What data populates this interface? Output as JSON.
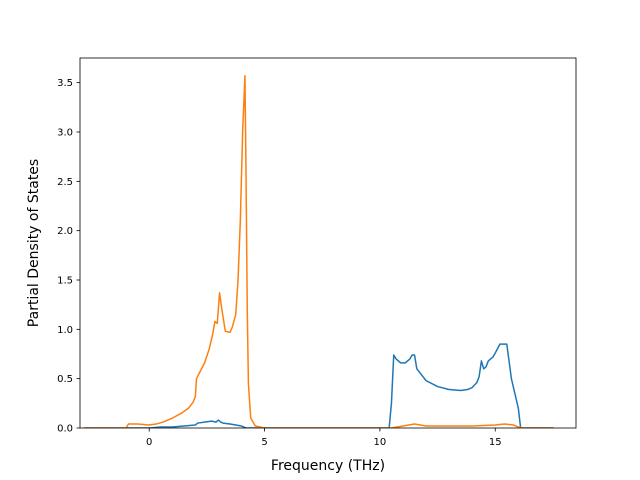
{
  "chart_data": {
    "type": "line",
    "title": "",
    "xlabel": "Frequency (THz)",
    "ylabel": "Partial Density of States",
    "xlim": [
      -3.0,
      18.5
    ],
    "ylim": [
      0.0,
      3.75
    ],
    "xticks": [
      0,
      5,
      10,
      15
    ],
    "xtick_labels": [
      "0",
      "5",
      "10",
      "15"
    ],
    "yticks": [
      0.0,
      0.5,
      1.0,
      1.5,
      2.0,
      2.5,
      3.0,
      3.5
    ],
    "ytick_labels": [
      "0.0",
      "0.5",
      "1.0",
      "1.5",
      "2.0",
      "2.5",
      "3.0",
      "3.5"
    ],
    "grid": false,
    "legend": "none",
    "series": [
      {
        "color": "#1f77b4",
        "x": [
          -2.8,
          -1.0,
          0.0,
          0.5,
          1.0,
          1.5,
          2.0,
          2.1,
          2.4,
          2.7,
          2.9,
          3.0,
          3.1,
          3.2,
          3.5,
          4.0,
          4.2,
          4.5,
          5.0,
          8.0,
          10.4,
          10.5,
          10.6,
          10.7,
          10.9,
          11.1,
          11.3,
          11.4,
          11.5,
          11.6,
          12.0,
          12.5,
          13.0,
          13.5,
          13.8,
          14.0,
          14.2,
          14.3,
          14.4,
          14.5,
          14.6,
          14.7,
          14.9,
          15.0,
          15.2,
          15.5,
          15.7,
          16.0,
          16.1,
          16.5,
          17.5
        ],
        "y": [
          0.0,
          0.0,
          0.0,
          0.01,
          0.01,
          0.02,
          0.03,
          0.05,
          0.06,
          0.07,
          0.06,
          0.08,
          0.06,
          0.05,
          0.04,
          0.02,
          0.0,
          0.0,
          0.0,
          0.0,
          0.0,
          0.25,
          0.74,
          0.7,
          0.66,
          0.66,
          0.7,
          0.74,
          0.74,
          0.6,
          0.48,
          0.42,
          0.39,
          0.38,
          0.39,
          0.41,
          0.46,
          0.52,
          0.68,
          0.6,
          0.62,
          0.68,
          0.72,
          0.76,
          0.85,
          0.85,
          0.5,
          0.2,
          0.0,
          0.0,
          0.0
        ]
      },
      {
        "color": "#ff7f0e",
        "x": [
          -2.8,
          -1.0,
          -0.9,
          -0.5,
          0.0,
          0.3,
          0.6,
          1.0,
          1.4,
          1.7,
          1.9,
          2.0,
          2.05,
          2.2,
          2.4,
          2.6,
          2.75,
          2.85,
          2.95,
          3.05,
          3.15,
          3.3,
          3.5,
          3.6,
          3.75,
          3.85,
          3.95,
          4.05,
          4.15,
          4.2,
          4.25,
          4.3,
          4.4,
          4.6,
          5.0,
          8.0,
          10.5,
          11.0,
          11.5,
          12.0,
          13.0,
          14.0,
          15.0,
          15.4,
          15.8,
          16.0,
          16.2,
          17.5
        ],
        "y": [
          0.0,
          0.0,
          0.04,
          0.04,
          0.03,
          0.04,
          0.06,
          0.1,
          0.15,
          0.2,
          0.26,
          0.32,
          0.5,
          0.57,
          0.66,
          0.8,
          0.95,
          1.08,
          1.06,
          1.37,
          1.2,
          0.98,
          0.97,
          1.02,
          1.15,
          1.5,
          2.1,
          3.0,
          3.57,
          2.5,
          1.2,
          0.45,
          0.1,
          0.02,
          0.0,
          0.0,
          0.0,
          0.02,
          0.04,
          0.02,
          0.02,
          0.02,
          0.03,
          0.04,
          0.03,
          0.01,
          0.0,
          0.0
        ]
      }
    ]
  }
}
